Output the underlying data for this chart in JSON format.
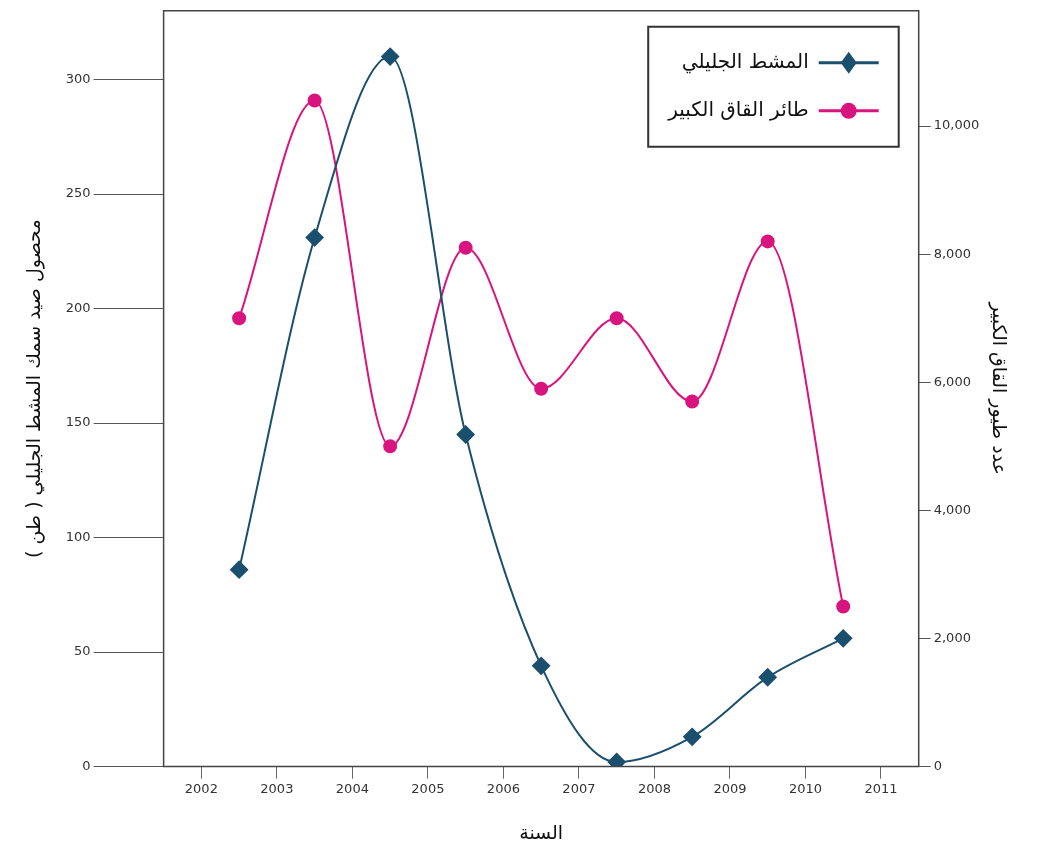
{
  "chart_data": {
    "type": "line",
    "xlabel": "السنة",
    "ylabel": "محصول صيد سمك المشط الجليلي ( طن )",
    "y2label": "عدد طيور القاق الكبير",
    "x": [
      2003,
      2004,
      2005,
      2006,
      2007,
      2008,
      2009,
      2010,
      2011
    ],
    "xlim": [
      2002,
      2012
    ],
    "xticks": [
      {
        "value": 2002.5,
        "label": "2002"
      },
      {
        "value": 2003.5,
        "label": "2003"
      },
      {
        "value": 2004.5,
        "label": "2004"
      },
      {
        "value": 2005.5,
        "label": "2005"
      },
      {
        "value": 2006.5,
        "label": "2006"
      },
      {
        "value": 2007.5,
        "label": "2007"
      },
      {
        "value": 2008.5,
        "label": "2008"
      },
      {
        "value": 2009.5,
        "label": "2009"
      },
      {
        "value": 2010.5,
        "label": "2010"
      },
      {
        "value": 2011.5,
        "label": "2011"
      }
    ],
    "ylim": [
      0,
      330
    ],
    "yticks": [
      0,
      50,
      100,
      150,
      200,
      250,
      300
    ],
    "y2lim": [
      0,
      11800
    ],
    "y2ticks": [
      0,
      {
        "value": 2000,
        "label": "2,000"
      },
      {
        "value": 4000,
        "label": "4,000"
      },
      {
        "value": 6000,
        "label": "6,000"
      },
      {
        "value": 8000,
        "label": "8,000"
      },
      {
        "value": 10000,
        "label": "10,000"
      }
    ],
    "series": [
      {
        "name": "المشط الجليلي",
        "color": "#1b4f6e",
        "marker": "diamond",
        "values": [
          86,
          231,
          310,
          145,
          44,
          2,
          13,
          39,
          56
        ]
      },
      {
        "name": "طائر القاق الكبير",
        "color": "#d9147e",
        "marker": "circle",
        "axis": "y2",
        "values": [
          7000,
          10400,
          5000,
          8100,
          5900,
          7000,
          5700,
          8200,
          2500
        ]
      }
    ],
    "grid": false,
    "legend": "top right"
  }
}
